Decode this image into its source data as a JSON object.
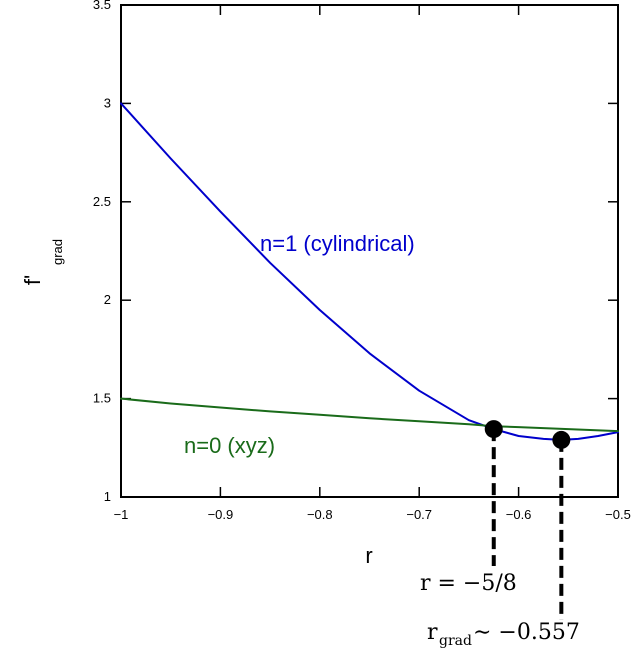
{
  "chart_data": {
    "type": "line",
    "xlabel": "r",
    "ylabel": "f'",
    "ylabel_sub": "grad",
    "xlim": [
      -1,
      -0.5
    ],
    "ylim": [
      1,
      3.5
    ],
    "x_ticks": [
      -1,
      -0.9,
      -0.8,
      -0.7,
      -0.6,
      -0.5
    ],
    "x_tick_labels": [
      "−1",
      "−0.9",
      "−0.8",
      "−0.7",
      "−0.6",
      "−0.5"
    ],
    "y_ticks": [
      1,
      1.5,
      2,
      2.5,
      3,
      3.5
    ],
    "y_tick_labels": [
      "1",
      "1.5",
      "2",
      "2.5",
      "3",
      "3.5"
    ],
    "grid": false,
    "series": [
      {
        "name": "n=1 (cylindrical)",
        "color": "#0000cc",
        "x": [
          -1,
          -0.95,
          -0.9,
          -0.85,
          -0.8,
          -0.75,
          -0.7,
          -0.65,
          -0.625,
          -0.6,
          -0.575,
          -0.557,
          -0.54,
          -0.52,
          -0.5
        ],
        "y": [
          3.0,
          2.72,
          2.45,
          2.19,
          1.95,
          1.73,
          1.54,
          1.39,
          1.345,
          1.31,
          1.295,
          1.29,
          1.295,
          1.31,
          1.33
        ]
      },
      {
        "name": "n=0 (xyz)",
        "color": "#1a6b1a",
        "x": [
          -1,
          -0.95,
          -0.9,
          -0.85,
          -0.8,
          -0.75,
          -0.7,
          -0.65,
          -0.625,
          -0.6,
          -0.55,
          -0.5
        ],
        "y": [
          1.5,
          1.475,
          1.455,
          1.435,
          1.418,
          1.4,
          1.385,
          1.37,
          1.36,
          1.355,
          1.345,
          1.335
        ]
      }
    ],
    "markers": [
      {
        "x": -0.625,
        "y": 1.345,
        "label_main": "r = −5/8"
      },
      {
        "x": -0.557,
        "y": 1.29,
        "label_main": "r",
        "label_sub": "grad",
        "label_rest": " ∼ −0.557"
      }
    ]
  }
}
